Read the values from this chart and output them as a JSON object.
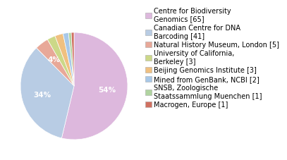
{
  "labels": [
    "Centre for Biodiversity\nGenomics [65]",
    "Canadian Centre for DNA\nBarcoding [41]",
    "Natural History Museum, London [5]",
    "University of California,\nBerkeley [3]",
    "Beijing Genomics Institute [3]",
    "Mined from GenBank, NCBI [2]",
    "SNSB, Zoologische\nStaatssammlung Muenchen [1]",
    "Macrogen, Europe [1]"
  ],
  "values": [
    65,
    41,
    5,
    3,
    3,
    2,
    1,
    1
  ],
  "colors": [
    "#ddb8dd",
    "#b8cce4",
    "#e8a898",
    "#ccd888",
    "#f0c080",
    "#a8c8e8",
    "#b0d4a0",
    "#d07060"
  ],
  "background_color": "#ffffff",
  "text_color": "#ffffff",
  "legend_fontsize": 7.0,
  "pct_fontsize": 7.5,
  "pct_threshold": 3.5
}
